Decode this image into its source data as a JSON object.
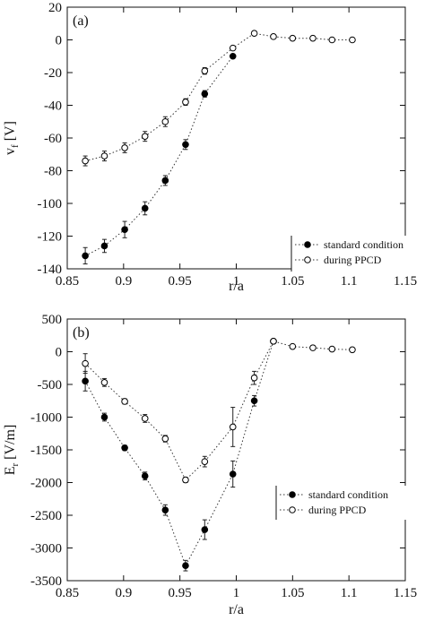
{
  "chart_data": [
    {
      "panel_label": "(a)",
      "type": "scatter",
      "xlabel": "r/a",
      "ylabel_main": "v",
      "ylabel_sub": "f",
      "ylabel_unit": "[V]",
      "xlim": [
        0.85,
        1.15
      ],
      "ylim": [
        -140,
        20
      ],
      "x_ticks": [
        0.85,
        0.9,
        0.95,
        1,
        1.05,
        1.1,
        1.15
      ],
      "x_tick_labels": [
        "0.85",
        "0.9",
        "0.95",
        "1",
        "1.05",
        "1.1",
        "1.15"
      ],
      "y_ticks": [
        -140,
        -120,
        -100,
        -80,
        -60,
        -40,
        -20,
        0,
        20
      ],
      "y_tick_labels": [
        "-140",
        "-120",
        "-100",
        "-80",
        "-60",
        "-40",
        "-20",
        "0",
        "20"
      ],
      "legend_position": "bottom-right",
      "series": [
        {
          "name": "standard condition",
          "marker": "filled-circle",
          "line": "dotted",
          "points": [
            {
              "x": 0.866,
              "y": -132,
              "err": 5
            },
            {
              "x": 0.883,
              "y": -126,
              "err": 4
            },
            {
              "x": 0.901,
              "y": -116,
              "err": 5
            },
            {
              "x": 0.919,
              "y": -103,
              "err": 4
            },
            {
              "x": 0.937,
              "y": -86,
              "err": 3
            },
            {
              "x": 0.955,
              "y": -64,
              "err": 3
            },
            {
              "x": 0.972,
              "y": -33,
              "err": 2
            },
            {
              "x": 0.997,
              "y": -10,
              "err": 1
            }
          ]
        },
        {
          "name": "during PPCD",
          "marker": "open-circle",
          "line": "dotted",
          "points": [
            {
              "x": 0.866,
              "y": -74,
              "err": 3
            },
            {
              "x": 0.883,
              "y": -71,
              "err": 3
            },
            {
              "x": 0.901,
              "y": -66,
              "err": 3
            },
            {
              "x": 0.919,
              "y": -59,
              "err": 3
            },
            {
              "x": 0.937,
              "y": -50,
              "err": 3
            },
            {
              "x": 0.955,
              "y": -38,
              "err": 2
            },
            {
              "x": 0.972,
              "y": -19,
              "err": 2
            },
            {
              "x": 0.997,
              "y": -5,
              "err": 1
            },
            {
              "x": 1.016,
              "y": 4,
              "err": 1
            },
            {
              "x": 1.033,
              "y": 2,
              "err": 1
            },
            {
              "x": 1.05,
              "y": 1,
              "err": 1
            },
            {
              "x": 1.068,
              "y": 1,
              "err": 0.5
            },
            {
              "x": 1.085,
              "y": 0,
              "err": 0.5
            },
            {
              "x": 1.103,
              "y": 0,
              "err": 0.5
            }
          ]
        }
      ]
    },
    {
      "panel_label": "(b)",
      "type": "scatter",
      "xlabel": "r/a",
      "ylabel_main": "E",
      "ylabel_sub": "r",
      "ylabel_unit": "[V/m]",
      "xlim": [
        0.85,
        1.15
      ],
      "ylim": [
        -3500,
        500
      ],
      "x_ticks": [
        0.85,
        0.9,
        0.95,
        1,
        1.05,
        1.1,
        1.15
      ],
      "x_tick_labels": [
        "0.85",
        "0.9",
        "0.95",
        "1",
        "1.05",
        "1.1",
        "1.15"
      ],
      "y_ticks": [
        -3500,
        -3000,
        -2500,
        -2000,
        -1500,
        -1000,
        -500,
        0,
        500
      ],
      "y_tick_labels": [
        "-3500",
        "-3000",
        "-2500",
        "-2000",
        "-1500",
        "-1000",
        "-500",
        "0",
        "500"
      ],
      "legend_position": "right",
      "series": [
        {
          "name": "standard condition",
          "marker": "filled-circle",
          "line": "dotted",
          "points": [
            {
              "x": 0.866,
              "y": -450,
              "err": 150
            },
            {
              "x": 0.883,
              "y": -1000,
              "err": 60
            },
            {
              "x": 0.901,
              "y": -1470,
              "err": 40
            },
            {
              "x": 0.919,
              "y": -1900,
              "err": 60
            },
            {
              "x": 0.937,
              "y": -2420,
              "err": 80
            },
            {
              "x": 0.955,
              "y": -3270,
              "err": 80
            },
            {
              "x": 0.972,
              "y": -2720,
              "err": 150
            },
            {
              "x": 0.997,
              "y": -1870,
              "err": 200
            },
            {
              "x": 1.016,
              "y": -750,
              "err": 80
            },
            {
              "x": 1.033,
              "y": 160,
              "err": 30
            }
          ]
        },
        {
          "name": "during PPCD",
          "marker": "open-circle",
          "line": "dotted",
          "points": [
            {
              "x": 0.866,
              "y": -180,
              "err": 150
            },
            {
              "x": 0.883,
              "y": -470,
              "err": 60
            },
            {
              "x": 0.901,
              "y": -760,
              "err": 40
            },
            {
              "x": 0.919,
              "y": -1020,
              "err": 60
            },
            {
              "x": 0.937,
              "y": -1330,
              "err": 50
            },
            {
              "x": 0.955,
              "y": -1960,
              "err": 40
            },
            {
              "x": 0.972,
              "y": -1680,
              "err": 80
            },
            {
              "x": 0.997,
              "y": -1150,
              "err": 300
            },
            {
              "x": 1.016,
              "y": -400,
              "err": 100
            },
            {
              "x": 1.033,
              "y": 160,
              "err": 30
            },
            {
              "x": 1.05,
              "y": 80,
              "err": 20
            },
            {
              "x": 1.068,
              "y": 60,
              "err": 15
            },
            {
              "x": 1.085,
              "y": 40,
              "err": 15
            },
            {
              "x": 1.103,
              "y": 30,
              "err": 10
            }
          ]
        }
      ]
    }
  ]
}
